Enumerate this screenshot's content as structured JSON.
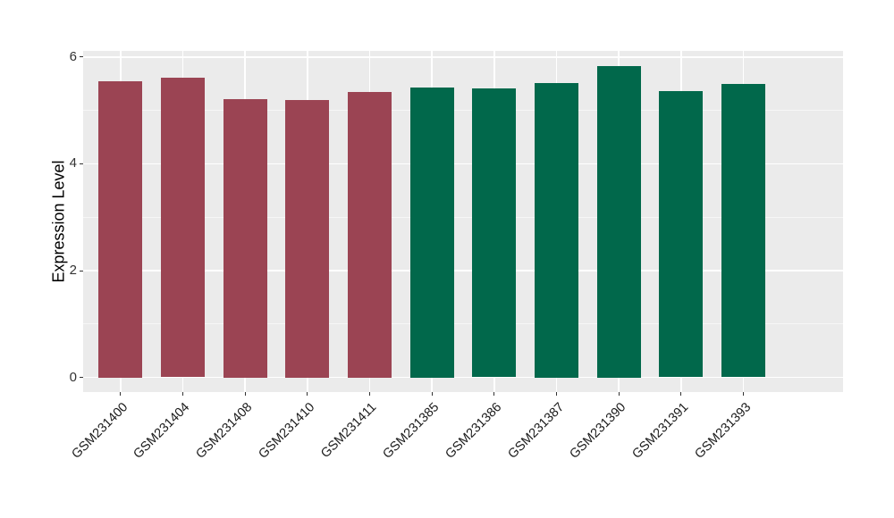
{
  "chart_data": {
    "type": "bar",
    "title": "",
    "xlabel": "",
    "ylabel": "Expression Level",
    "categories": [
      "GSM231400",
      "GSM231404",
      "GSM231408",
      "GSM231410",
      "GSM231411",
      "GSM231385",
      "GSM231386",
      "GSM231387",
      "GSM231390",
      "GSM231391",
      "GSM231393"
    ],
    "values": [
      5.55,
      5.61,
      5.22,
      5.19,
      5.35,
      5.43,
      5.41,
      5.51,
      5.84,
      5.37,
      5.49
    ],
    "bar_colors": [
      "#9B4453",
      "#9B4453",
      "#9B4453",
      "#9B4453",
      "#9B4453",
      "#01684B",
      "#01684B",
      "#01684B",
      "#01684B",
      "#01684B",
      "#01684B"
    ],
    "groups": [
      {
        "name": "left-group",
        "color": "#9B4453",
        "categories": [
          "GSM231400",
          "GSM231404",
          "GSM231408",
          "GSM231410",
          "GSM231411"
        ]
      },
      {
        "name": "right-group",
        "color": "#01684B",
        "categories": [
          "GSM231385",
          "GSM231386",
          "GSM231387",
          "GSM231390",
          "GSM231391",
          "GSM231393"
        ]
      }
    ],
    "yticks": [
      0,
      2,
      4,
      6
    ],
    "ytick_labels": [
      "0",
      "2",
      "4",
      "6"
    ],
    "yminor": [
      1,
      3,
      5
    ],
    "ylim": [
      -0.276,
      6.117
    ],
    "bar_width_frac": 0.7,
    "grid": "on",
    "legend": "none",
    "colors": {
      "panel_bg": "#EBEBEB",
      "grid_major": "#FFFFFF",
      "grid_minor": "rgba(255,255,255,0.55)",
      "tick_mark": "#333333",
      "axis_text": "#333333",
      "axis_title": "#000000",
      "figure_bg": "#FFFFFF"
    }
  }
}
